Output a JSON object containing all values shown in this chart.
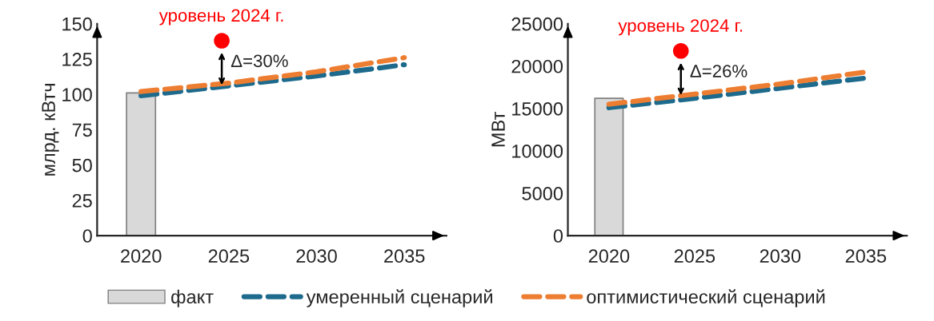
{
  "chart_data": [
    {
      "type": "line",
      "ylabel": "млрд. кВтч",
      "xlim": [
        2017.5,
        2037.4
      ],
      "xticks": [
        2020,
        2025,
        2030,
        2035
      ],
      "ylim": [
        0,
        150
      ],
      "yticks": [
        0,
        25,
        50,
        75,
        100,
        125,
        150
      ],
      "grid": false,
      "legend": "bottom",
      "line_style": "dashed",
      "series": [
        {
          "name": "факт",
          "type": "bar",
          "color": "#d9d9d9",
          "x": [
            2020
          ],
          "values": [
            101
          ]
        },
        {
          "name": "умеренный сценарий",
          "color": "#1d6a8c",
          "x": [
            2020,
            2025,
            2030,
            2035
          ],
          "values": [
            99,
            106,
            113,
            121
          ]
        },
        {
          "name": "оптимистический сценарий",
          "color": "#ed7d31",
          "x": [
            2020,
            2025,
            2030,
            2035
          ],
          "values": [
            102,
            108,
            116,
            126
          ]
        },
        {
          "type": "scatter",
          "color": "#ff0000",
          "x": [
            2024.6
          ],
          "values": [
            138
          ]
        }
      ],
      "annotations": [
        {
          "text": "уровень 2024 г.",
          "x": 2024.6,
          "y": 138
        },
        "Δ=30%"
      ]
    },
    {
      "type": "line",
      "ylabel": "МВт",
      "xlim": [
        2017.6,
        2037.4
      ],
      "xticks": [
        2020,
        2025,
        2030,
        2035
      ],
      "ylim": [
        0,
        25000
      ],
      "yticks": [
        0,
        5000,
        10000,
        15000,
        20000,
        25000
      ],
      "grid": false,
      "legend": "bottom",
      "line_style": "dashed",
      "series": [
        {
          "name": "факт",
          "type": "bar",
          "color": "#d9d9d9",
          "x": [
            2020
          ],
          "values": [
            16200
          ]
        },
        {
          "name": "умеренный сценарий",
          "color": "#1d6a8c",
          "x": [
            2020,
            2025,
            2030,
            2035
          ],
          "values": [
            15100,
            16200,
            17400,
            18600
          ]
        },
        {
          "name": "оптимистический сценарий",
          "color": "#ed7d31",
          "x": [
            2020,
            2025,
            2030,
            2035
          ],
          "values": [
            15500,
            16700,
            17900,
            19300
          ]
        },
        {
          "type": "scatter",
          "color": "#ff0000",
          "x": [
            2024.2
          ],
          "values": [
            21800
          ]
        }
      ],
      "annotations": [
        {
          "text": "уровень 2024 г.",
          "x": 2024.2,
          "y": 21800
        },
        "Δ=26%"
      ]
    }
  ]
}
